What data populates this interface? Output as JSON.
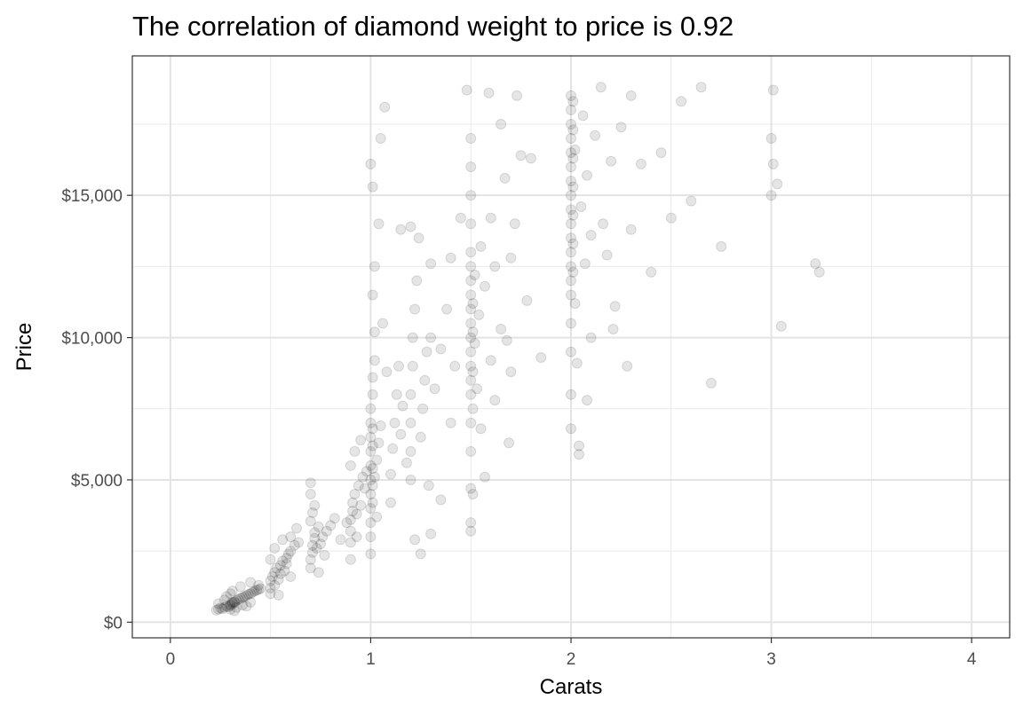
{
  "chart_data": {
    "type": "scatter",
    "title": "The correlation of diamond weight to price is 0.92",
    "xlabel": "Carats",
    "ylabel": "Price",
    "xlim": [
      -0.19,
      4.19
    ],
    "ylim": [
      -550,
      19900
    ],
    "x_ticks": [
      0,
      1,
      2,
      3,
      4
    ],
    "x_tick_labels": [
      "0",
      "1",
      "2",
      "3",
      "4"
    ],
    "y_ticks": [
      0,
      5000,
      10000,
      15000
    ],
    "y_tick_labels": [
      "$0",
      "$5,000",
      "$10,000",
      "$15,000"
    ],
    "grid": true,
    "legend": "none",
    "point_color": "#000000",
    "point_opacity": 0.1,
    "series": [
      {
        "points": [
          [
            0.23,
            420
          ],
          [
            0.24,
            460
          ],
          [
            0.25,
            500
          ],
          [
            0.26,
            470
          ],
          [
            0.27,
            520
          ],
          [
            0.28,
            560
          ],
          [
            0.29,
            540
          ],
          [
            0.3,
            580
          ],
          [
            0.3,
            620
          ],
          [
            0.31,
            650
          ],
          [
            0.31,
            700
          ],
          [
            0.32,
            720
          ],
          [
            0.32,
            680
          ],
          [
            0.33,
            760
          ],
          [
            0.34,
            800
          ],
          [
            0.35,
            840
          ],
          [
            0.36,
            870
          ],
          [
            0.37,
            900
          ],
          [
            0.38,
            940
          ],
          [
            0.39,
            980
          ],
          [
            0.4,
            1000
          ],
          [
            0.41,
            1050
          ],
          [
            0.42,
            1090
          ],
          [
            0.43,
            1120
          ],
          [
            0.44,
            1150
          ],
          [
            0.45,
            1180
          ],
          [
            0.3,
            450
          ],
          [
            0.33,
            520
          ],
          [
            0.36,
            600
          ],
          [
            0.4,
            700
          ],
          [
            0.28,
            900
          ],
          [
            0.31,
            1100
          ],
          [
            0.35,
            1250
          ],
          [
            0.4,
            1400
          ],
          [
            0.44,
            1300
          ],
          [
            0.24,
            650
          ],
          [
            0.27,
            780
          ],
          [
            0.3,
            1000
          ],
          [
            0.32,
            400
          ],
          [
            0.38,
            560
          ],
          [
            0.5,
            1200
          ],
          [
            0.5,
            1450
          ],
          [
            0.51,
            1600
          ],
          [
            0.52,
            1750
          ],
          [
            0.53,
            1900
          ],
          [
            0.54,
            1500
          ],
          [
            0.55,
            2000
          ],
          [
            0.56,
            2150
          ],
          [
            0.57,
            1800
          ],
          [
            0.58,
            2250
          ],
          [
            0.59,
            2400
          ],
          [
            0.6,
            2500
          ],
          [
            0.62,
            2700
          ],
          [
            0.64,
            2800
          ],
          [
            0.5,
            1000
          ],
          [
            0.52,
            1300
          ],
          [
            0.55,
            1700
          ],
          [
            0.58,
            2050
          ],
          [
            0.6,
            3000
          ],
          [
            0.63,
            3300
          ],
          [
            0.52,
            2600
          ],
          [
            0.56,
            2900
          ],
          [
            0.5,
            2200
          ],
          [
            0.54,
            950
          ],
          [
            0.6,
            1600
          ],
          [
            0.7,
            1900
          ],
          [
            0.7,
            2200
          ],
          [
            0.71,
            2450
          ],
          [
            0.71,
            2700
          ],
          [
            0.72,
            2950
          ],
          [
            0.72,
            3150
          ],
          [
            0.73,
            2600
          ],
          [
            0.74,
            3350
          ],
          [
            0.75,
            2750
          ],
          [
            0.76,
            3000
          ],
          [
            0.78,
            3200
          ],
          [
            0.8,
            3400
          ],
          [
            0.7,
            3550
          ],
          [
            0.71,
            3850
          ],
          [
            0.72,
            4100
          ],
          [
            0.7,
            4500
          ],
          [
            0.74,
            1750
          ],
          [
            0.77,
            2350
          ],
          [
            0.82,
            3650
          ],
          [
            0.7,
            4900
          ],
          [
            0.85,
            2900
          ],
          [
            0.88,
            3500
          ],
          [
            0.9,
            2800
          ],
          [
            0.9,
            3200
          ],
          [
            0.9,
            3600
          ],
          [
            0.91,
            3900
          ],
          [
            0.91,
            4200
          ],
          [
            0.92,
            4500
          ],
          [
            0.93,
            3800
          ],
          [
            0.94,
            4800
          ],
          [
            0.95,
            4100
          ],
          [
            0.96,
            5100
          ],
          [
            0.97,
            4700
          ],
          [
            0.98,
            5300
          ],
          [
            0.9,
            5500
          ],
          [
            0.92,
            6000
          ],
          [
            0.95,
            6400
          ],
          [
            0.9,
            2200
          ],
          [
            0.93,
            3000
          ],
          [
            1.0,
            3000
          ],
          [
            1.0,
            3500
          ],
          [
            1.0,
            4000
          ],
          [
            1.0,
            4500
          ],
          [
            1.0,
            5000
          ],
          [
            1.0,
            5500
          ],
          [
            1.0,
            6000
          ],
          [
            1.0,
            6500
          ],
          [
            1.0,
            7000
          ],
          [
            1.0,
            7500
          ],
          [
            1.01,
            4200
          ],
          [
            1.01,
            4800
          ],
          [
            1.01,
            5400
          ],
          [
            1.01,
            6200
          ],
          [
            1.01,
            6800
          ],
          [
            1.01,
            8000
          ],
          [
            1.01,
            8600
          ],
          [
            1.02,
            5100
          ],
          [
            1.02,
            9200
          ],
          [
            1.02,
            10200
          ],
          [
            1.03,
            5700
          ],
          [
            1.04,
            6300
          ],
          [
            1.05,
            6900
          ],
          [
            1.0,
            2400
          ],
          [
            1.01,
            11500
          ],
          [
            1.02,
            12500
          ],
          [
            1.03,
            3700
          ],
          [
            1.0,
            16100
          ],
          [
            1.01,
            15300
          ],
          [
            1.04,
            14000
          ],
          [
            1.05,
            17000
          ],
          [
            1.07,
            18100
          ],
          [
            1.06,
            10500
          ],
          [
            1.08,
            8800
          ],
          [
            1.1,
            4200
          ],
          [
            1.1,
            5200
          ],
          [
            1.11,
            6100
          ],
          [
            1.12,
            7000
          ],
          [
            1.13,
            8000
          ],
          [
            1.14,
            9000
          ],
          [
            1.15,
            6600
          ],
          [
            1.16,
            7600
          ],
          [
            1.18,
            5600
          ],
          [
            1.2,
            5000
          ],
          [
            1.2,
            6000
          ],
          [
            1.2,
            7000
          ],
          [
            1.2,
            8000
          ],
          [
            1.21,
            9000
          ],
          [
            1.21,
            10000
          ],
          [
            1.22,
            11000
          ],
          [
            1.23,
            12000
          ],
          [
            1.24,
            13500
          ],
          [
            1.25,
            6500
          ],
          [
            1.26,
            7500
          ],
          [
            1.27,
            8500
          ],
          [
            1.28,
            9500
          ],
          [
            1.29,
            4800
          ],
          [
            1.3,
            10000
          ],
          [
            1.3,
            12600
          ],
          [
            1.32,
            8200
          ],
          [
            1.35,
            9600
          ],
          [
            1.38,
            11000
          ],
          [
            1.4,
            7000
          ],
          [
            1.4,
            12800
          ],
          [
            1.42,
            9000
          ],
          [
            1.45,
            14200
          ],
          [
            1.22,
            2900
          ],
          [
            1.25,
            2400
          ],
          [
            1.15,
            13800
          ],
          [
            1.3,
            3100
          ],
          [
            1.2,
            13900
          ],
          [
            1.35,
            4300
          ],
          [
            1.5,
            3500
          ],
          [
            1.5,
            4700
          ],
          [
            1.5,
            6000
          ],
          [
            1.5,
            7000
          ],
          [
            1.5,
            8000
          ],
          [
            1.5,
            8500
          ],
          [
            1.5,
            9000
          ],
          [
            1.5,
            9500
          ],
          [
            1.5,
            10000
          ],
          [
            1.5,
            10500
          ],
          [
            1.5,
            11000
          ],
          [
            1.5,
            11500
          ],
          [
            1.5,
            12000
          ],
          [
            1.5,
            12500
          ],
          [
            1.5,
            13000
          ],
          [
            1.5,
            14000
          ],
          [
            1.5,
            15000
          ],
          [
            1.5,
            16000
          ],
          [
            1.5,
            17000
          ],
          [
            1.51,
            7500
          ],
          [
            1.51,
            8800
          ],
          [
            1.51,
            10200
          ],
          [
            1.51,
            11200
          ],
          [
            1.52,
            9800
          ],
          [
            1.52,
            12200
          ],
          [
            1.53,
            8200
          ],
          [
            1.54,
            10800
          ],
          [
            1.55,
            13200
          ],
          [
            1.57,
            11800
          ],
          [
            1.6,
            9200
          ],
          [
            1.6,
            14200
          ],
          [
            1.62,
            12500
          ],
          [
            1.65,
            10300
          ],
          [
            1.67,
            15600
          ],
          [
            1.7,
            12800
          ],
          [
            1.7,
            8800
          ],
          [
            1.72,
            14000
          ],
          [
            1.75,
            16400
          ],
          [
            1.78,
            11300
          ],
          [
            1.8,
            16300
          ],
          [
            1.48,
            18700
          ],
          [
            1.59,
            18600
          ],
          [
            1.69,
            6300
          ],
          [
            1.57,
            5100
          ],
          [
            1.65,
            17500
          ],
          [
            1.73,
            18500
          ],
          [
            1.85,
            9300
          ],
          [
            1.55,
            6800
          ],
          [
            1.62,
            7800
          ],
          [
            1.68,
            9900
          ],
          [
            1.5,
            3200
          ],
          [
            1.51,
            4500
          ],
          [
            2.0,
            6800
          ],
          [
            2.0,
            8000
          ],
          [
            2.0,
            9500
          ],
          [
            2.0,
            10500
          ],
          [
            2.0,
            11500
          ],
          [
            2.0,
            12000
          ],
          [
            2.0,
            12500
          ],
          [
            2.0,
            13000
          ],
          [
            2.0,
            13500
          ],
          [
            2.0,
            14000
          ],
          [
            2.0,
            14500
          ],
          [
            2.0,
            15000
          ],
          [
            2.0,
            15500
          ],
          [
            2.0,
            16000
          ],
          [
            2.0,
            16500
          ],
          [
            2.0,
            17000
          ],
          [
            2.0,
            17500
          ],
          [
            2.0,
            18000
          ],
          [
            2.0,
            18500
          ],
          [
            2.01,
            12300
          ],
          [
            2.01,
            13300
          ],
          [
            2.01,
            14300
          ],
          [
            2.01,
            15300
          ],
          [
            2.01,
            16300
          ],
          [
            2.01,
            17300
          ],
          [
            2.01,
            18300
          ],
          [
            2.02,
            11200
          ],
          [
            2.02,
            16600
          ],
          [
            2.03,
            9100
          ],
          [
            2.04,
            6200
          ],
          [
            2.05,
            14600
          ],
          [
            2.06,
            17800
          ],
          [
            2.07,
            12600
          ],
          [
            2.08,
            15700
          ],
          [
            2.1,
            13600
          ],
          [
            2.1,
            10000
          ],
          [
            2.12,
            17100
          ],
          [
            2.15,
            18800
          ],
          [
            2.18,
            12900
          ],
          [
            2.2,
            16200
          ],
          [
            2.21,
            10300
          ],
          [
            2.25,
            17400
          ],
          [
            2.3,
            13800
          ],
          [
            2.3,
            18500
          ],
          [
            2.35,
            16100
          ],
          [
            2.4,
            12300
          ],
          [
            2.45,
            16500
          ],
          [
            2.5,
            14200
          ],
          [
            2.55,
            18300
          ],
          [
            2.6,
            14800
          ],
          [
            2.65,
            18800
          ],
          [
            2.7,
            8400
          ],
          [
            2.75,
            13200
          ],
          [
            2.04,
            5900
          ],
          [
            2.08,
            7800
          ],
          [
            2.28,
            9000
          ],
          [
            2.22,
            11100
          ],
          [
            2.16,
            14000
          ],
          [
            3.0,
            15000
          ],
          [
            3.0,
            17000
          ],
          [
            3.01,
            18700
          ],
          [
            3.01,
            16100
          ],
          [
            3.03,
            15400
          ],
          [
            3.05,
            10400
          ],
          [
            3.22,
            12600
          ],
          [
            3.24,
            12300
          ]
        ]
      }
    ]
  }
}
